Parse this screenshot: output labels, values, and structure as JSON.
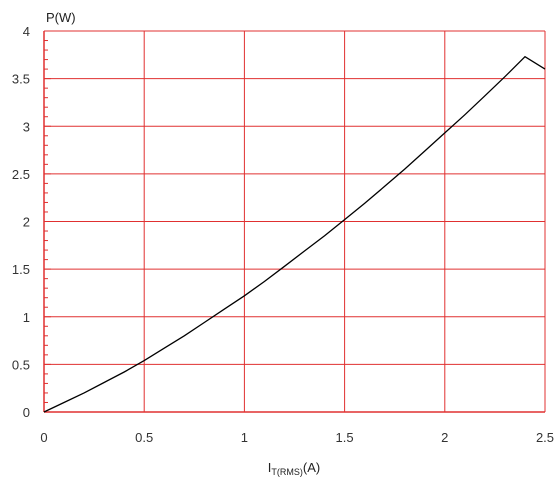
{
  "chart_data": {
    "type": "line",
    "title": "",
    "ylabel": "P(W)",
    "xlabel": {
      "main": "I",
      "subscript": "T(RMS)",
      "suffix": "(A)"
    },
    "xlim": [
      0,
      2.5
    ],
    "ylim": [
      0,
      4
    ],
    "x_ticks": [
      "0",
      "0.5",
      "1",
      "1.5",
      "2",
      "2.5"
    ],
    "y_ticks": [
      "0",
      "0.5",
      "1",
      "1.5",
      "2",
      "2.5",
      "3",
      "3.5",
      "4"
    ],
    "grid": true,
    "x": [
      0,
      0.1,
      0.2,
      0.3,
      0.4,
      0.5,
      0.6,
      0.7,
      0.8,
      0.9,
      1.0,
      1.1,
      1.2,
      1.3,
      1.4,
      1.5,
      1.6,
      1.7,
      1.8,
      1.9,
      2.0,
      2.1,
      2.2,
      2.3,
      2.4,
      2.5
    ],
    "series": [
      {
        "values": [
          0.0,
          0.1,
          0.2,
          0.31,
          0.42,
          0.54,
          0.67,
          0.8,
          0.94,
          1.08,
          1.22,
          1.37,
          1.53,
          1.69,
          1.85,
          2.02,
          2.19,
          2.37,
          2.55,
          2.74,
          2.93,
          3.12,
          3.32,
          3.52,
          3.73,
          3.6
        ]
      }
    ],
    "colors": {
      "grid": "#e03030",
      "axis": "#e03030",
      "line": "#000000"
    }
  }
}
